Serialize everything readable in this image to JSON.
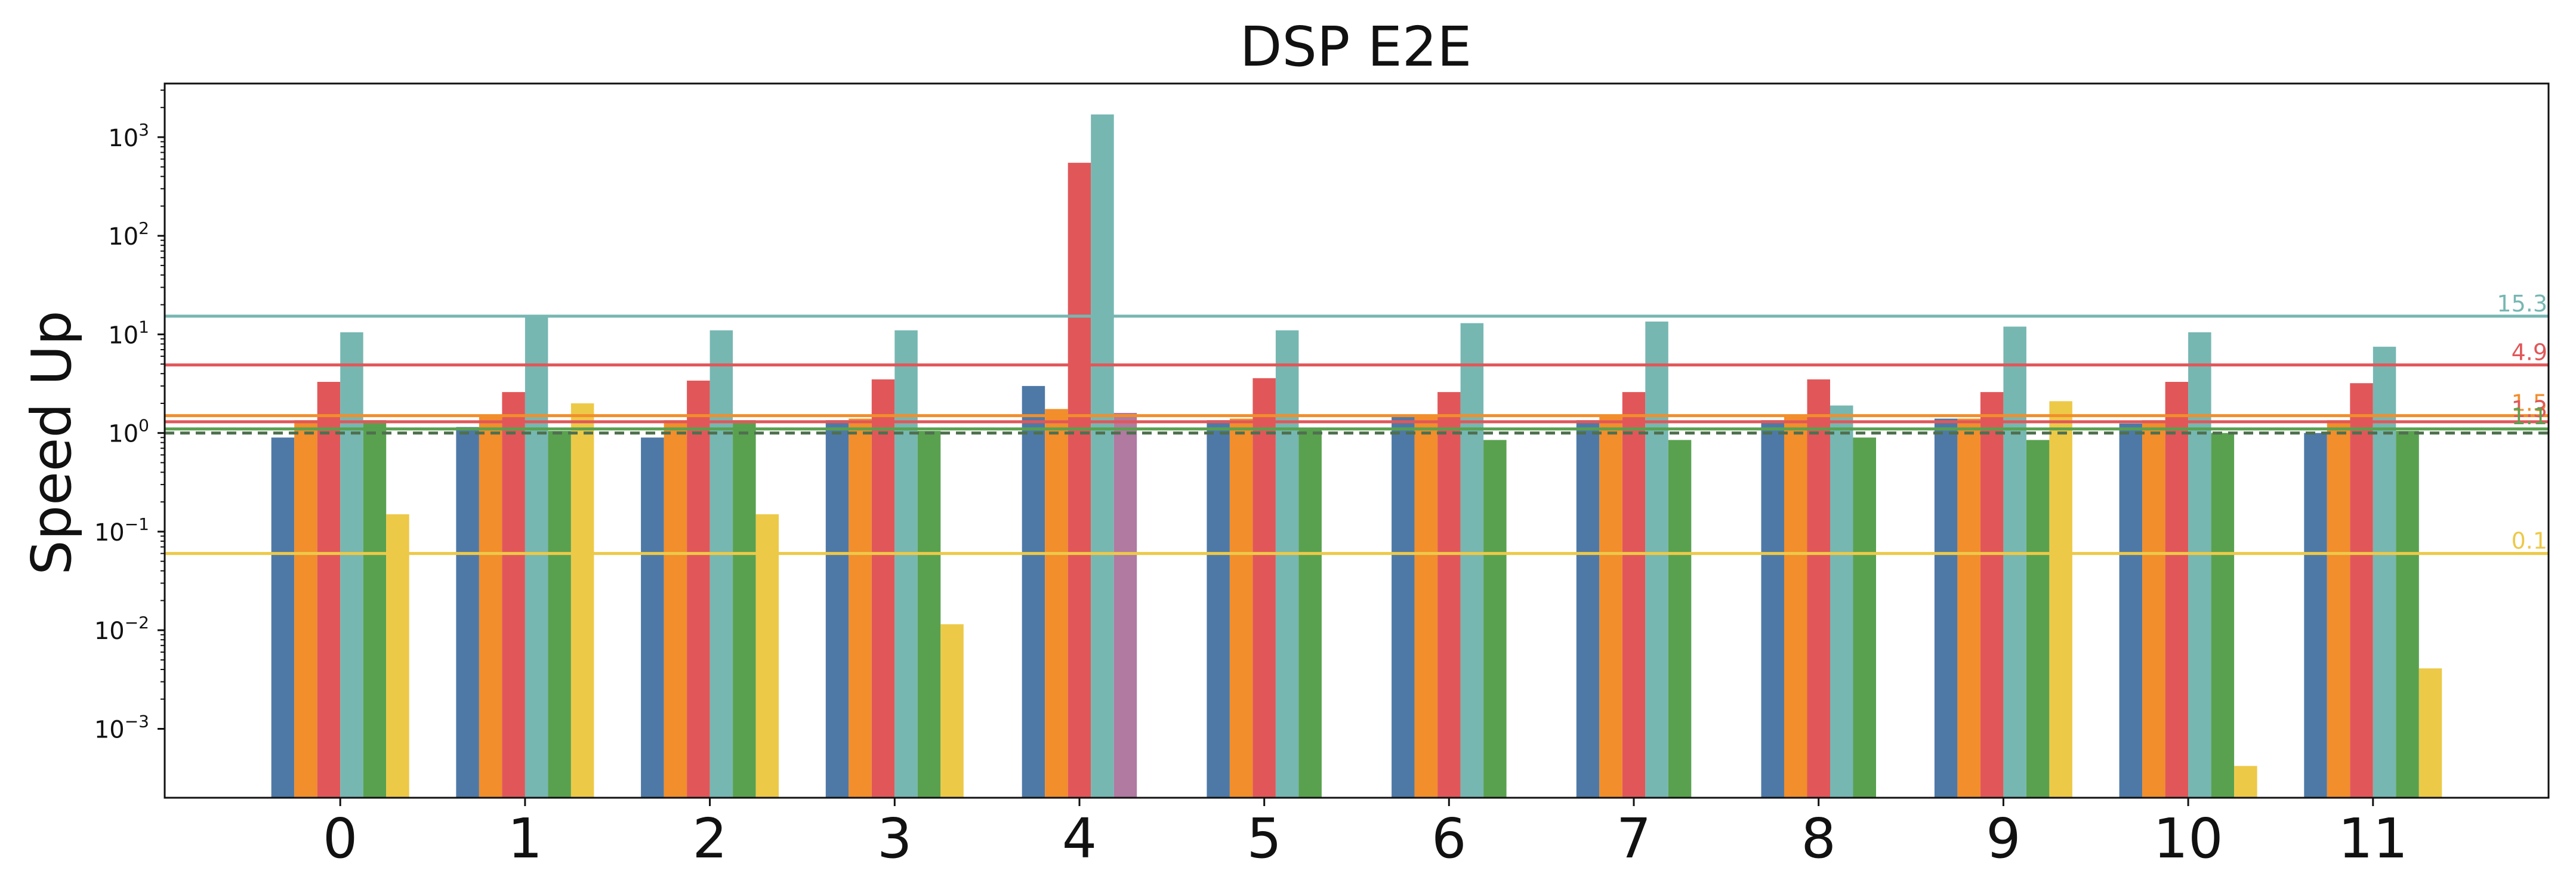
{
  "chart_data": {
    "type": "bar",
    "title": "DSP E2E",
    "xlabel": "",
    "ylabel": "Speed Up",
    "yscale": "log",
    "ylim": [
      0.0002,
      3500
    ],
    "grid": false,
    "categories": [
      "0",
      "1",
      "2",
      "3",
      "4",
      "5",
      "6",
      "7",
      "8",
      "9",
      "10",
      "11"
    ],
    "ytick_labels": [
      {
        "value": 0.001,
        "base": "10",
        "exponent": "−3"
      },
      {
        "value": 0.01,
        "base": "10",
        "exponent": "−2"
      },
      {
        "value": 0.1,
        "base": "10",
        "exponent": "−1"
      },
      {
        "value": 1,
        "base": "10",
        "exponent": "0"
      },
      {
        "value": 10,
        "base": "10",
        "exponent": "1"
      },
      {
        "value": 100,
        "base": "10",
        "exponent": "2"
      },
      {
        "value": 1000,
        "base": "10",
        "exponent": "3"
      }
    ],
    "series": [
      {
        "color": "#4e79a7",
        "values": [
          0.9,
          1.15,
          0.9,
          1.35,
          3.0,
          1.35,
          1.45,
          1.35,
          1.35,
          1.4,
          1.25,
          1.0
        ]
      },
      {
        "color": "#f28e2b",
        "values": [
          1.35,
          1.45,
          1.35,
          1.4,
          1.75,
          1.4,
          1.5,
          1.45,
          1.5,
          1.4,
          1.35,
          1.35
        ]
      },
      {
        "color": "#e15759",
        "values": [
          3.3,
          2.6,
          3.4,
          3.5,
          550,
          3.6,
          2.6,
          2.6,
          3.5,
          2.6,
          3.3,
          3.2
        ]
      },
      {
        "color": "#76b7b2",
        "values": [
          10.5,
          15.5,
          11.0,
          11.0,
          1700,
          11.0,
          13.0,
          13.5,
          1.9,
          12.0,
          10.5,
          7.5
        ]
      },
      {
        "color": "#59a14f",
        "values": [
          1.35,
          1.05,
          1.35,
          1.05,
          null,
          1.1,
          0.85,
          0.85,
          0.9,
          0.85,
          1.0,
          1.05
        ]
      },
      {
        "color": "#edc948",
        "values": [
          0.15,
          2.0,
          0.15,
          0.0115,
          null,
          null,
          null,
          null,
          null,
          2.1,
          0.00042,
          0.0041
        ]
      },
      {
        "color": "#b07aa1",
        "values": [
          null,
          null,
          null,
          null,
          1.6,
          null,
          null,
          null,
          null,
          null,
          null,
          null
        ]
      }
    ],
    "reference_lines": [
      {
        "value": 15.3,
        "label": "15.3",
        "color": "#76b7b2",
        "style": "solid"
      },
      {
        "value": 4.9,
        "label": "4.9",
        "color": "#e15759",
        "style": "solid"
      },
      {
        "value": 1.5,
        "label": "1.5",
        "color": "#f28e2b",
        "style": "solid"
      },
      {
        "value": 1.3,
        "label": "1.3",
        "color": "#e15759",
        "style": "solid"
      },
      {
        "value": 1.1,
        "label": "1.1",
        "color": "#59a14f",
        "style": "solid"
      },
      {
        "value": 1.0,
        "label": "",
        "color": "#4f6f4f",
        "style": "dashed"
      },
      {
        "value": 0.06,
        "label": "0.1",
        "color": "#edc948",
        "style": "solid"
      }
    ]
  }
}
